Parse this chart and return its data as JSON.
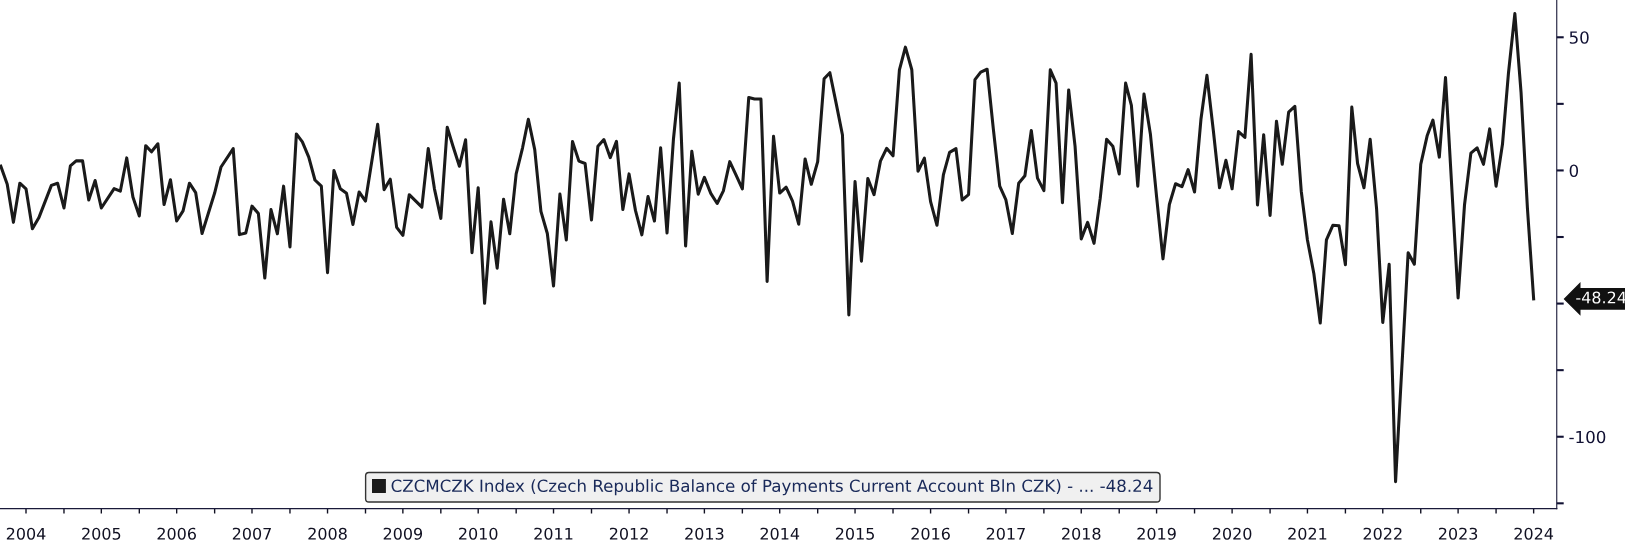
{
  "chart_data": {
    "type": "line",
    "x": [
      "2004-03",
      "2004-04",
      "2004-05",
      "2004-06",
      "2004-07",
      "2004-08",
      "2004-09",
      "2004-11",
      "2004-12",
      "2005-01",
      "2005-02",
      "2005-03",
      "2005-04",
      "2005-05",
      "2005-06",
      "2005-07",
      "2005-09",
      "2005-10",
      "2005-11",
      "2005-12",
      "2006-01",
      "2006-02",
      "2006-03",
      "2006-04",
      "2006-05",
      "2006-06",
      "2006-07",
      "2006-08",
      "2006-09",
      "2006-10",
      "2006-11",
      "2007-01",
      "2007-02",
      "2007-04",
      "2007-05",
      "2007-06",
      "2007-07",
      "2007-08",
      "2007-09",
      "2007-10",
      "2007-11",
      "2007-12",
      "2008-01",
      "2008-02",
      "2008-03",
      "2008-04",
      "2008-05",
      "2008-06",
      "2008-07",
      "2008-08",
      "2008-09",
      "2008-10",
      "2008-11",
      "2008-12",
      "2009-01",
      "2009-03",
      "2009-04",
      "2009-05",
      "2009-06",
      "2009-07",
      "2009-08",
      "2009-10",
      "2009-11",
      "2009-12",
      "2010-01",
      "2010-02",
      "2010-03",
      "2010-04",
      "2010-05",
      "2010-06",
      "2010-07",
      "2010-08",
      "2010-09",
      "2010-10",
      "2010-11",
      "2010-12",
      "2011-01",
      "2011-02",
      "2011-03",
      "2011-04",
      "2011-05",
      "2011-06",
      "2011-07",
      "2011-08",
      "2011-09",
      "2011-10",
      "2011-11",
      "2011-12",
      "2012-01",
      "2012-02",
      "2012-03",
      "2012-04",
      "2012-05",
      "2012-06",
      "2012-07",
      "2012-08",
      "2012-09",
      "2012-10",
      "2012-11",
      "2012-12",
      "2013-01",
      "2013-02",
      "2013-03",
      "2013-04",
      "2013-05",
      "2013-06",
      "2013-07",
      "2013-08",
      "2013-09",
      "2013-10",
      "2013-11",
      "2013-12",
      "2014-01",
      "2014-02",
      "2014-03",
      "2014-04",
      "2014-05",
      "2014-06",
      "2014-07",
      "2014-08",
      "2014-09",
      "2014-10",
      "2014-11",
      "2014-12",
      "2015-01",
      "2015-02",
      "2015-03",
      "2015-04",
      "2015-05",
      "2015-06",
      "2015-07",
      "2015-08",
      "2015-09",
      "2015-10",
      "2015-11",
      "2015-12",
      "2016-01",
      "2016-02",
      "2016-03",
      "2016-04",
      "2016-05",
      "2016-06",
      "2016-07",
      "2016-08",
      "2016-09",
      "2016-10",
      "2016-11",
      "2016-12",
      "2017-01",
      "2017-02",
      "2017-03",
      "2017-04",
      "2017-05",
      "2017-06",
      "2017-07",
      "2017-08",
      "2017-09",
      "2017-10",
      "2017-11",
      "2017-12",
      "2018-01",
      "2018-02",
      "2018-03",
      "2018-04",
      "2018-05",
      "2018-06",
      "2018-07",
      "2018-08",
      "2018-09",
      "2018-10",
      "2018-11",
      "2018-12",
      "2019-01",
      "2019-02",
      "2019-03",
      "2019-04",
      "2019-05",
      "2019-06",
      "2019-07",
      "2019-08",
      "2019-09",
      "2019-10",
      "2019-11",
      "2019-12",
      "2020-01",
      "2020-02",
      "2020-03",
      "2020-04",
      "2020-05",
      "2020-06",
      "2020-07",
      "2020-08",
      "2020-09",
      "2020-10",
      "2020-11",
      "2020-12",
      "2021-01",
      "2021-02",
      "2021-03",
      "2021-04",
      "2021-05",
      "2021-06",
      "2021-07",
      "2021-08",
      "2021-09",
      "2021-10",
      "2021-11",
      "2021-12",
      "2022-01",
      "2022-02",
      "2022-03",
      "2022-04",
      "2022-05",
      "2022-06",
      "2022-07",
      "2022-08",
      "2022-09",
      "2022-11",
      "2022-12",
      "2023-01",
      "2023-02",
      "2023-03",
      "2023-04",
      "2023-05",
      "2023-07",
      "2023-08",
      "2023-09",
      "2023-10",
      "2023-11",
      "2023-12",
      "2024-01",
      "2024-02",
      "2024-03",
      "2024-04",
      "2024-05",
      "2024-06",
      "2024-07"
    ],
    "series": [
      {
        "name": "CZCMCZK Index (Czech Republic Balance of Payments Current Account Bln CZK) - ... -48.24",
        "color": "#1a1a1a",
        "values": [
          1.6,
          -5.2,
          -19.5,
          -4.8,
          -6.9,
          -21.9,
          -17.8,
          -5.6,
          -4.8,
          -14.1,
          1.7,
          3.6,
          3.6,
          -11.1,
          -3.8,
          -14.1,
          -6.8,
          -7.8,
          4.7,
          -10,
          -17.1,
          9.3,
          7.0,
          10.0,
          -12.8,
          -3.5,
          -19.0,
          -15.2,
          -4.8,
          -8.3,
          -23.7,
          -8.5,
          1.3,
          8.2,
          -24.1,
          -23.5,
          -13.4,
          -16.2,
          -40.4,
          -14.7,
          -23.8,
          -5.9,
          -28.7,
          13.7,
          10.7,
          5.0,
          -3.6,
          -5.9,
          -38.4,
          0,
          -6.9,
          -8.6,
          -20.3,
          -8.1,
          -11.5,
          17.3,
          -7.2,
          -3.3,
          -21.4,
          -24.4,
          -9.1,
          -13.8,
          8.2,
          -6.9,
          -18.0,
          16.2,
          9.1,
          1.6,
          11.5,
          -30.9,
          -6.5,
          -49.9,
          -19.3,
          -36.7,
          -10.8,
          -23.8,
          -1.3,
          8.5,
          19.2,
          7.8,
          -15.4,
          -23.7,
          -43.4,
          -8.9,
          -26.1,
          10.9,
          3.5,
          2.6,
          -18.6,
          9.1,
          11.6,
          4.8,
          10.9,
          -14.7,
          -1.3,
          -15.0,
          -24.2,
          -9.8,
          -19.0,
          8.5,
          -23.5,
          11.7,
          32.8,
          -28.4,
          7.2,
          -8.9,
          -2.6,
          -8.6,
          -12.4,
          -7.7,
          3.3,
          -1.7,
          -6.9,
          27.4,
          26.8,
          26.8,
          -41.7,
          12.8,
          -8.5,
          -6.3,
          -11.5,
          -20.2,
          4.3,
          -5.2,
          3.3,
          34.4,
          36.7,
          25.0,
          13.3,
          -54.3,
          -4.2,
          -34.1,
          -3.0,
          -9.1,
          3.5,
          8.3,
          5.5,
          37.8,
          46.3,
          37.8,
          -0.3,
          4.6,
          -11.7,
          -20.6,
          -1.7,
          6.8,
          8.2,
          -11.1,
          -9.1,
          34.1,
          36.9,
          38.0,
          15.6,
          -5.9,
          -11.1,
          -23.7,
          -4.8,
          -2.0,
          15.0,
          -2.9,
          -7.6,
          37.8,
          32.8,
          -12.1,
          30.2,
          9.1,
          -25.7,
          -19.5,
          -27.4,
          -10.4,
          11.7,
          9.1,
          -1.3,
          32.8,
          24.4,
          -5.9,
          28.7,
          13.7,
          -9.8,
          -33.2,
          -12.8,
          -5.0,
          -6.1,
          0.3,
          -8.1,
          19.2,
          35.7,
          15.0,
          -6.5,
          3.8,
          -6.9,
          14.6,
          12.4,
          43.6,
          -13.0,
          13.4,
          -16.9,
          18.5,
          2.3,
          21.9,
          24.1,
          -7.8,
          -26.1,
          -38.7,
          -57.3,
          -26.1,
          -20.6,
          -20.8,
          -35.4,
          23.8,
          2.6,
          -6.5,
          11.7,
          -14.3,
          -57.1,
          -35.2,
          -116.9,
          -30.9,
          -35.2,
          2.3,
          13.0,
          18.9,
          5.0,
          34.9,
          -47.9,
          -13.0,
          6.5,
          8.5,
          2.3,
          15.6,
          -5.9,
          9.8,
          36.5,
          58.9,
          29.3,
          -14.3,
          -48.24
        ]
      }
    ],
    "xlim": [
      "2004-02-26",
      "2024-10-21"
    ],
    "xticks": [
      {
        "value": "2004-07",
        "label": "2004"
      },
      {
        "value": "2005-01",
        "label": null
      },
      {
        "value": "2005-07",
        "label": "2005"
      },
      {
        "value": "2006-01",
        "label": null
      },
      {
        "value": "2006-07",
        "label": "2006"
      },
      {
        "value": "2007-01",
        "label": null
      },
      {
        "value": "2007-07",
        "label": "2007"
      },
      {
        "value": "2008-01",
        "label": null
      },
      {
        "value": "2008-07",
        "label": "2008"
      },
      {
        "value": "2009-01",
        "label": null
      },
      {
        "value": "2009-07",
        "label": "2009"
      },
      {
        "value": "2010-01",
        "label": null
      },
      {
        "value": "2010-07",
        "label": "2010"
      },
      {
        "value": "2011-01",
        "label": null
      },
      {
        "value": "2011-07",
        "label": "2011"
      },
      {
        "value": "2012-01",
        "label": null
      },
      {
        "value": "2012-07",
        "label": "2012"
      },
      {
        "value": "2013-01",
        "label": null
      },
      {
        "value": "2013-07",
        "label": "2013"
      },
      {
        "value": "2014-01",
        "label": null
      },
      {
        "value": "2014-07",
        "label": "2014"
      },
      {
        "value": "2015-01",
        "label": null
      },
      {
        "value": "2015-07",
        "label": "2015"
      },
      {
        "value": "2016-01",
        "label": null
      },
      {
        "value": "2016-07",
        "label": "2016"
      },
      {
        "value": "2017-01",
        "label": null
      },
      {
        "value": "2017-07",
        "label": "2017"
      },
      {
        "value": "2018-01",
        "label": null
      },
      {
        "value": "2018-07",
        "label": "2018"
      },
      {
        "value": "2019-01",
        "label": null
      },
      {
        "value": "2019-07",
        "label": "2019"
      },
      {
        "value": "2020-01",
        "label": null
      },
      {
        "value": "2020-07",
        "label": "2020"
      },
      {
        "value": "2021-01",
        "label": null
      },
      {
        "value": "2021-07",
        "label": "2021"
      },
      {
        "value": "2022-01",
        "label": null
      },
      {
        "value": "2022-07",
        "label": "2022"
      },
      {
        "value": "2023-01",
        "label": null
      },
      {
        "value": "2023-07",
        "label": "2023"
      },
      {
        "value": "2024-01",
        "label": null
      },
      {
        "value": "2024-07",
        "label": "2024"
      }
    ],
    "ylim": [
      -127,
      64
    ],
    "yticks": [
      50,
      {
        "value": 25,
        "label": null
      },
      0,
      {
        "value": -25,
        "label": null
      },
      {
        "value": -50,
        "label": null
      },
      {
        "value": -75,
        "label": null
      },
      -100,
      {
        "value": -125,
        "label": null
      }
    ],
    "annotations": [
      {
        "text": "-48.24",
        "x": "2024-07",
        "y": -48.24
      }
    ],
    "legend": "bottom",
    "grid": false,
    "marker": "none",
    "line_style": "solid"
  }
}
